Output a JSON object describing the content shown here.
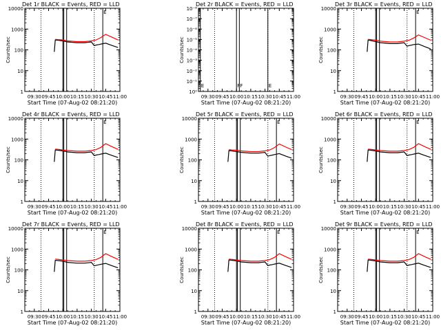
{
  "chart_data": [
    {
      "type": "line",
      "title": "Det 1r BLACK = Events, RED = LLD",
      "ylabel": "Counts/sec",
      "xlabel": "Start Time (07-Aug-02 08:21:20)",
      "yscale": "log",
      "ylim": [
        1,
        10000
      ],
      "xlim": [
        "09:20",
        "11:00"
      ],
      "yticks": [
        "1",
        "10",
        "100",
        "1000",
        "10000"
      ],
      "xticks": [
        "09:30",
        "09:45",
        "10:00",
        "10:15",
        "10:30",
        "10:45",
        "11:00"
      ],
      "flags": [
        {
          "x": "09:37",
          "text": ""
        },
        {
          "x": "10:33",
          "text": ""
        }
      ],
      "markers": [
        {
          "x": "10:00",
          "text": ""
        },
        {
          "x": "10:01",
          "text": ""
        },
        {
          "x": "10:04",
          "text": ""
        },
        {
          "x": "10:42",
          "text": "E"
        }
      ],
      "series": [
        {
          "name": "Events",
          "color": "#000000",
          "x": [
            "09:51",
            "09:52",
            "09:55",
            "10:00",
            "10:05",
            "10:15",
            "10:23",
            "10:30",
            "10:33",
            "10:35",
            "10:38",
            "10:40",
            "10:45",
            "10:52",
            "10:58"
          ],
          "y": [
            80,
            300,
            290,
            270,
            240,
            220,
            220,
            240,
            160,
            170,
            180,
            190,
            210,
            160,
            130
          ]
        },
        {
          "name": "LLD",
          "color": "#ff0000",
          "x": [
            "09:52",
            "09:55",
            "10:00",
            "10:05",
            "10:15",
            "10:23",
            "10:30",
            "10:35",
            "10:40",
            "10:45",
            "10:52",
            "10:58"
          ],
          "y": [
            320,
            310,
            300,
            270,
            250,
            250,
            270,
            300,
            390,
            560,
            400,
            300
          ]
        }
      ]
    },
    {
      "type": "line",
      "title": "Det 2r BLACK = Events, RED = LLD",
      "ylabel": "Counts/sec",
      "xlabel": "Start Time (07-Aug-02 08:21:20)",
      "yscale": "log",
      "ylim": [
        1,
        1e-08
      ],
      "xlim": [
        "09:20",
        "11:00"
      ],
      "yticks": [
        "10⁰",
        "10⁻¹",
        "10⁻²",
        "10⁻³",
        "10⁻⁴",
        "10⁻⁵",
        "10⁻⁶",
        "10⁻⁷",
        "10⁻⁸"
      ],
      "xticks": [
        "09:30",
        "09:45",
        "10:00",
        "10:15",
        "10:30",
        "10:45",
        "11:00"
      ],
      "flags": [
        {
          "x": "09:37",
          "text": ""
        },
        {
          "x": "10:33",
          "text": ""
        }
      ],
      "markers": [
        {
          "x": "09:22",
          "text": "E"
        },
        {
          "x": "10:00",
          "text": "F"
        },
        {
          "x": "10:03",
          "text": "F"
        },
        {
          "x": "10:33",
          "text": "E"
        }
      ],
      "series": []
    },
    {
      "type": "line",
      "title": "Det 3r BLACK = Events, RED = LLD",
      "ylabel": "Counts/sec",
      "xlabel": "Start Time (07-Aug-02 08:21:20)",
      "yscale": "log",
      "ylim": [
        1,
        10000
      ],
      "xlim": [
        "09:20",
        "11:00"
      ],
      "yticks": [
        "1",
        "10",
        "100",
        "1000",
        "10000"
      ],
      "xticks": [
        "09:30",
        "09:45",
        "10:00",
        "10:15",
        "10:30",
        "10:45",
        "11:00"
      ],
      "flags": [
        {
          "x": "09:37",
          "text": ""
        },
        {
          "x": "10:33",
          "text": ""
        }
      ],
      "markers": [
        {
          "x": "10:00",
          "text": ""
        },
        {
          "x": "10:01",
          "text": ""
        },
        {
          "x": "10:04",
          "text": ""
        },
        {
          "x": "10:42",
          "text": "E"
        }
      ],
      "series": [
        {
          "name": "Events",
          "color": "#000000",
          "x": [
            "09:51",
            "09:52",
            "09:55",
            "10:00",
            "10:05",
            "10:15",
            "10:23",
            "10:30",
            "10:33",
            "10:35",
            "10:38",
            "10:40",
            "10:45",
            "10:52",
            "10:58"
          ],
          "y": [
            80,
            300,
            280,
            250,
            220,
            200,
            200,
            220,
            150,
            160,
            170,
            180,
            190,
            140,
            110
          ]
        },
        {
          "name": "LLD",
          "color": "#ff0000",
          "x": [
            "09:52",
            "09:55",
            "10:00",
            "10:05",
            "10:15",
            "10:23",
            "10:30",
            "10:35",
            "10:40",
            "10:45",
            "10:52",
            "10:58"
          ],
          "y": [
            320,
            310,
            290,
            260,
            240,
            240,
            260,
            290,
            370,
            520,
            380,
            290
          ]
        }
      ]
    },
    {
      "type": "line",
      "title": "Det 4r BLACK = Events, RED = LLD",
      "ylabel": "Counts/sec",
      "xlabel": "Start Time (07-Aug-02 08:21:20)",
      "yscale": "log",
      "ylim": [
        1,
        10000
      ],
      "xlim": [
        "09:20",
        "11:00"
      ],
      "yticks": [
        "1",
        "10",
        "100",
        "1000",
        "10000"
      ],
      "xticks": [
        "09:30",
        "09:45",
        "10:00",
        "10:15",
        "10:30",
        "10:45",
        "11:00"
      ],
      "flags": [
        {
          "x": "09:37",
          "text": ""
        },
        {
          "x": "10:33",
          "text": ""
        }
      ],
      "markers": [
        {
          "x": "10:00",
          "text": ""
        },
        {
          "x": "10:01",
          "text": ""
        },
        {
          "x": "10:04",
          "text": ""
        },
        {
          "x": "10:42",
          "text": "E"
        }
      ],
      "series": [
        {
          "name": "Events",
          "color": "#000000",
          "x": [
            "09:51",
            "09:52",
            "09:55",
            "10:00",
            "10:05",
            "10:15",
            "10:23",
            "10:30",
            "10:33",
            "10:35",
            "10:38",
            "10:40",
            "10:45",
            "10:52",
            "10:58"
          ],
          "y": [
            80,
            300,
            290,
            270,
            240,
            220,
            220,
            240,
            160,
            170,
            180,
            190,
            210,
            160,
            130
          ]
        },
        {
          "name": "LLD",
          "color": "#ff0000",
          "x": [
            "09:52",
            "09:55",
            "10:00",
            "10:05",
            "10:15",
            "10:23",
            "10:30",
            "10:35",
            "10:40",
            "10:45",
            "10:52",
            "10:58"
          ],
          "y": [
            330,
            320,
            300,
            280,
            260,
            260,
            280,
            310,
            400,
            600,
            420,
            320
          ]
        }
      ]
    },
    {
      "type": "line",
      "title": "Det 5r BLACK = Events, RED = LLD",
      "ylabel": "Counts/sec",
      "xlabel": "Start Time (07-Aug-02 08:21:20)",
      "yscale": "log",
      "ylim": [
        1,
        10000
      ],
      "xlim": [
        "09:20",
        "11:00"
      ],
      "yticks": [
        "1",
        "10",
        "100",
        "1000",
        "10000"
      ],
      "xticks": [
        "09:30",
        "09:45",
        "10:00",
        "10:15",
        "10:30",
        "10:45",
        "11:00"
      ],
      "flags": [
        {
          "x": "09:37",
          "text": ""
        },
        {
          "x": "10:33",
          "text": ""
        }
      ],
      "markers": [
        {
          "x": "10:00",
          "text": ""
        },
        {
          "x": "10:01",
          "text": ""
        },
        {
          "x": "10:04",
          "text": ""
        },
        {
          "x": "10:42",
          "text": "E"
        }
      ],
      "series": [
        {
          "name": "Events",
          "color": "#000000",
          "x": [
            "09:51",
            "09:52",
            "09:55",
            "10:00",
            "10:05",
            "10:15",
            "10:23",
            "10:30",
            "10:33",
            "10:35",
            "10:38",
            "10:40",
            "10:45",
            "10:52",
            "10:58"
          ],
          "y": [
            80,
            280,
            270,
            250,
            230,
            210,
            210,
            230,
            150,
            160,
            170,
            180,
            200,
            150,
            120
          ]
        },
        {
          "name": "LLD",
          "color": "#ff0000",
          "x": [
            "09:52",
            "09:55",
            "10:00",
            "10:05",
            "10:15",
            "10:23",
            "10:30",
            "10:35",
            "10:40",
            "10:45",
            "10:52",
            "10:58"
          ],
          "y": [
            310,
            300,
            290,
            270,
            250,
            250,
            270,
            300,
            390,
            580,
            410,
            310
          ]
        }
      ]
    },
    {
      "type": "line",
      "title": "Det 6r BLACK = Events, RED = LLD",
      "ylabel": "Counts/sec",
      "xlabel": "Start Time (07-Aug-02 08:21:20)",
      "yscale": "log",
      "ylim": [
        1,
        10000
      ],
      "xlim": [
        "09:20",
        "11:00"
      ],
      "yticks": [
        "1",
        "10",
        "100",
        "1000",
        "10000"
      ],
      "xticks": [
        "09:30",
        "09:45",
        "10:00",
        "10:15",
        "10:30",
        "10:45",
        "11:00"
      ],
      "flags": [
        {
          "x": "09:37",
          "text": ""
        },
        {
          "x": "10:33",
          "text": ""
        }
      ],
      "markers": [
        {
          "x": "10:00",
          "text": ""
        },
        {
          "x": "10:01",
          "text": ""
        },
        {
          "x": "10:04",
          "text": ""
        },
        {
          "x": "10:42",
          "text": "E"
        }
      ],
      "series": [
        {
          "name": "Events",
          "color": "#000000",
          "x": [
            "09:51",
            "09:52",
            "09:55",
            "10:00",
            "10:05",
            "10:15",
            "10:23",
            "10:30",
            "10:33",
            "10:35",
            "10:38",
            "10:40",
            "10:45",
            "10:52",
            "10:58"
          ],
          "y": [
            80,
            300,
            290,
            270,
            240,
            220,
            220,
            240,
            160,
            170,
            180,
            190,
            210,
            160,
            130
          ]
        },
        {
          "name": "LLD",
          "color": "#ff0000",
          "x": [
            "09:52",
            "09:55",
            "10:00",
            "10:05",
            "10:15",
            "10:23",
            "10:30",
            "10:35",
            "10:40",
            "10:45",
            "10:52",
            "10:58"
          ],
          "y": [
            330,
            320,
            300,
            280,
            260,
            260,
            280,
            310,
            400,
            600,
            420,
            320
          ]
        }
      ]
    },
    {
      "type": "line",
      "title": "Det 7r BLACK = Events, RED = LLD",
      "ylabel": "Counts/sec",
      "xlabel": "Start Time (07-Aug-02 08:21:20)",
      "yscale": "log",
      "ylim": [
        1,
        10000
      ],
      "xlim": [
        "09:20",
        "11:00"
      ],
      "yticks": [
        "1",
        "10",
        "100",
        "1000",
        "10000"
      ],
      "xticks": [
        "09:30",
        "09:45",
        "10:00",
        "10:15",
        "10:30",
        "10:45",
        "11:00"
      ],
      "flags": [
        {
          "x": "09:37",
          "text": ""
        },
        {
          "x": "10:33",
          "text": ""
        }
      ],
      "markers": [
        {
          "x": "10:00",
          "text": ""
        },
        {
          "x": "10:01",
          "text": ""
        },
        {
          "x": "10:04",
          "text": ""
        },
        {
          "x": "10:42",
          "text": "E"
        }
      ],
      "series": [
        {
          "name": "Events",
          "color": "#000000",
          "x": [
            "09:51",
            "09:52",
            "09:55",
            "10:00",
            "10:05",
            "10:15",
            "10:23",
            "10:30",
            "10:33",
            "10:35",
            "10:38",
            "10:40",
            "10:45",
            "10:52",
            "10:58"
          ],
          "y": [
            80,
            290,
            280,
            260,
            230,
            210,
            210,
            230,
            155,
            165,
            175,
            185,
            205,
            155,
            125
          ]
        },
        {
          "name": "LLD",
          "color": "#ff0000",
          "x": [
            "09:52",
            "09:55",
            "10:00",
            "10:05",
            "10:15",
            "10:23",
            "10:30",
            "10:35",
            "10:40",
            "10:45",
            "10:52",
            "10:58"
          ],
          "y": [
            330,
            320,
            300,
            280,
            260,
            260,
            280,
            310,
            400,
            600,
            420,
            320
          ]
        }
      ]
    },
    {
      "type": "line",
      "title": "Det 8r BLACK = Events, RED = LLD",
      "ylabel": "Counts/sec",
      "xlabel": "Start Time (07-Aug-02 08:21:20)",
      "yscale": "log",
      "ylim": [
        1,
        10000
      ],
      "xlim": [
        "09:20",
        "11:00"
      ],
      "yticks": [
        "1",
        "10",
        "100",
        "1000",
        "10000"
      ],
      "xticks": [
        "09:30",
        "09:45",
        "10:00",
        "10:15",
        "10:30",
        "10:45",
        "11:00"
      ],
      "flags": [
        {
          "x": "09:37",
          "text": ""
        },
        {
          "x": "10:33",
          "text": ""
        }
      ],
      "markers": [
        {
          "x": "10:00",
          "text": ""
        },
        {
          "x": "10:01",
          "text": ""
        },
        {
          "x": "10:04",
          "text": ""
        },
        {
          "x": "10:42",
          "text": "E"
        }
      ],
      "series": [
        {
          "name": "Events",
          "color": "#000000",
          "x": [
            "09:51",
            "09:52",
            "09:55",
            "10:00",
            "10:05",
            "10:15",
            "10:23",
            "10:30",
            "10:33",
            "10:35",
            "10:38",
            "10:40",
            "10:45",
            "10:52",
            "10:58"
          ],
          "y": [
            80,
            300,
            290,
            270,
            240,
            220,
            220,
            240,
            160,
            170,
            180,
            190,
            210,
            160,
            130
          ]
        },
        {
          "name": "LLD",
          "color": "#ff0000",
          "x": [
            "09:52",
            "09:55",
            "10:00",
            "10:05",
            "10:15",
            "10:23",
            "10:30",
            "10:35",
            "10:40",
            "10:45",
            "10:52",
            "10:58"
          ],
          "y": [
            330,
            320,
            300,
            280,
            260,
            260,
            280,
            310,
            400,
            600,
            420,
            320
          ]
        }
      ]
    },
    {
      "type": "line",
      "title": "Det 9r BLACK = Events, RED = LLD",
      "ylabel": "Counts/sec",
      "xlabel": "Start Time (07-Aug-02 08:21:20)",
      "yscale": "log",
      "ylim": [
        1,
        10000
      ],
      "xlim": [
        "09:20",
        "11:00"
      ],
      "yticks": [
        "1",
        "10",
        "100",
        "1000",
        "10000"
      ],
      "xticks": [
        "09:30",
        "09:45",
        "10:00",
        "10:15",
        "10:30",
        "10:45",
        "11:00"
      ],
      "flags": [
        {
          "x": "09:37",
          "text": ""
        },
        {
          "x": "10:33",
          "text": ""
        }
      ],
      "markers": [
        {
          "x": "10:00",
          "text": ""
        },
        {
          "x": "10:01",
          "text": ""
        },
        {
          "x": "10:04",
          "text": ""
        },
        {
          "x": "10:42",
          "text": "E"
        }
      ],
      "series": [
        {
          "name": "Events",
          "color": "#000000",
          "x": [
            "09:51",
            "09:52",
            "09:55",
            "10:00",
            "10:05",
            "10:15",
            "10:23",
            "10:30",
            "10:33",
            "10:35",
            "10:38",
            "10:40",
            "10:45",
            "10:52",
            "10:58"
          ],
          "y": [
            80,
            300,
            290,
            270,
            240,
            220,
            220,
            240,
            160,
            170,
            180,
            190,
            210,
            160,
            130
          ]
        },
        {
          "name": "LLD",
          "color": "#ff0000",
          "x": [
            "09:52",
            "09:55",
            "10:00",
            "10:05",
            "10:15",
            "10:23",
            "10:30",
            "10:35",
            "10:40",
            "10:45",
            "10:52",
            "10:58"
          ],
          "y": [
            330,
            320,
            300,
            280,
            260,
            260,
            280,
            310,
            400,
            600,
            420,
            320
          ]
        }
      ]
    }
  ]
}
